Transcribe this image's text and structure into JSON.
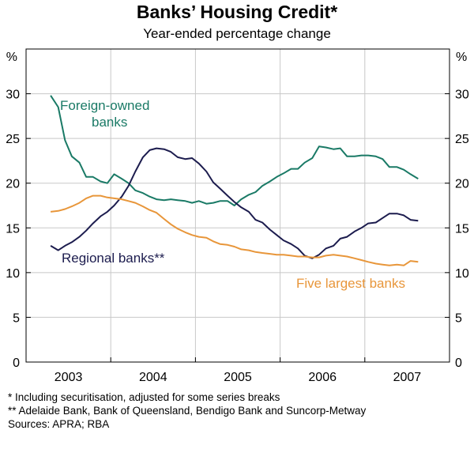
{
  "chart_data": {
    "type": "line",
    "title": "Banks’ Housing Credit*",
    "subtitle": "Year-ended percentage change",
    "y_unit_left": "%",
    "y_unit_right": "%",
    "ylim": [
      0,
      35
    ],
    "yticks": [
      0,
      5,
      10,
      15,
      20,
      25,
      30
    ],
    "xlim": [
      2002.5,
      2007.5
    ],
    "x_tick_labels": [
      "2003",
      "2004",
      "2005",
      "2006",
      "2007"
    ],
    "x_label_positions": [
      2003.0,
      2004.0,
      2005.0,
      2006.0,
      2007.0
    ],
    "x_year_boundaries": [
      2003.5,
      2004.5,
      2005.5,
      2006.5
    ],
    "grid": true,
    "series": [
      {
        "name": "Foreign-owned banks",
        "label_lines": [
          "Foreign-owned",
          "banks"
        ],
        "color": "#1a7a66",
        "x": [
          2002.79,
          2002.88,
          2002.96,
          2003.04,
          2003.13,
          2003.21,
          2003.29,
          2003.38,
          2003.46,
          2003.54,
          2003.63,
          2003.71,
          2003.79,
          2003.88,
          2003.96,
          2004.04,
          2004.13,
          2004.21,
          2004.29,
          2004.38,
          2004.46,
          2004.54,
          2004.63,
          2004.71,
          2004.79,
          2004.88,
          2004.96,
          2005.04,
          2005.13,
          2005.21,
          2005.29,
          2005.38,
          2005.46,
          2005.54,
          2005.63,
          2005.71,
          2005.79,
          2005.88,
          2005.96,
          2006.04,
          2006.13,
          2006.21,
          2006.29,
          2006.38,
          2006.46,
          2006.54,
          2006.63,
          2006.71,
          2006.79,
          2006.88,
          2006.96,
          2007.04,
          2007.13
        ],
        "values": [
          29.8,
          28.5,
          24.8,
          23.0,
          22.3,
          20.7,
          20.7,
          20.2,
          20.0,
          21.0,
          20.5,
          20.0,
          19.2,
          18.9,
          18.5,
          18.2,
          18.1,
          18.2,
          18.1,
          18.0,
          17.8,
          18.0,
          17.7,
          17.8,
          18.0,
          18.0,
          17.5,
          18.2,
          18.7,
          19.0,
          19.7,
          20.2,
          20.7,
          21.1,
          21.6,
          21.6,
          22.3,
          22.8,
          24.1,
          24.0,
          23.8,
          23.9,
          23.0,
          23.0,
          23.1,
          23.1,
          23.0,
          22.7,
          21.8,
          21.8,
          21.5,
          21.0,
          20.5
        ]
      },
      {
        "name": "Regional banks**",
        "color": "#1c1c4e",
        "x": [
          2002.79,
          2002.88,
          2002.96,
          2003.04,
          2003.13,
          2003.21,
          2003.29,
          2003.38,
          2003.46,
          2003.54,
          2003.63,
          2003.71,
          2003.79,
          2003.88,
          2003.96,
          2004.04,
          2004.13,
          2004.21,
          2004.29,
          2004.38,
          2004.46,
          2004.54,
          2004.63,
          2004.71,
          2004.79,
          2004.88,
          2004.96,
          2005.04,
          2005.13,
          2005.21,
          2005.29,
          2005.38,
          2005.46,
          2005.54,
          2005.63,
          2005.71,
          2005.79,
          2005.88,
          2005.96,
          2006.04,
          2006.13,
          2006.21,
          2006.29,
          2006.38,
          2006.46,
          2006.54,
          2006.63,
          2006.71,
          2006.79,
          2006.88,
          2006.96,
          2007.04,
          2007.13
        ],
        "values": [
          13.0,
          12.5,
          13.0,
          13.4,
          14.0,
          14.7,
          15.5,
          16.3,
          16.8,
          17.5,
          18.5,
          19.7,
          21.3,
          22.9,
          23.7,
          23.9,
          23.8,
          23.5,
          22.9,
          22.7,
          22.8,
          22.2,
          21.3,
          20.1,
          19.4,
          18.6,
          17.9,
          17.3,
          16.8,
          15.9,
          15.6,
          14.8,
          14.2,
          13.6,
          13.2,
          12.7,
          11.9,
          11.6,
          12.0,
          12.7,
          13.0,
          13.8,
          14.0,
          14.6,
          15.0,
          15.5,
          15.6,
          16.1,
          16.6,
          16.6,
          16.4,
          15.9,
          15.8
        ]
      },
      {
        "name": "Five largest banks",
        "color": "#e8963a",
        "x": [
          2002.79,
          2002.88,
          2002.96,
          2003.04,
          2003.13,
          2003.21,
          2003.29,
          2003.38,
          2003.46,
          2003.54,
          2003.63,
          2003.71,
          2003.79,
          2003.88,
          2003.96,
          2004.04,
          2004.13,
          2004.21,
          2004.29,
          2004.38,
          2004.46,
          2004.54,
          2004.63,
          2004.71,
          2004.79,
          2004.88,
          2004.96,
          2005.04,
          2005.13,
          2005.21,
          2005.29,
          2005.38,
          2005.46,
          2005.54,
          2005.63,
          2005.71,
          2005.79,
          2005.88,
          2005.96,
          2006.04,
          2006.13,
          2006.21,
          2006.29,
          2006.38,
          2006.46,
          2006.54,
          2006.63,
          2006.71,
          2006.79,
          2006.88,
          2006.96,
          2007.04,
          2007.13
        ],
        "values": [
          16.8,
          16.9,
          17.1,
          17.4,
          17.8,
          18.3,
          18.6,
          18.6,
          18.4,
          18.3,
          18.2,
          18.0,
          17.8,
          17.4,
          17.0,
          16.7,
          16.0,
          15.4,
          14.9,
          14.5,
          14.2,
          14.0,
          13.9,
          13.5,
          13.2,
          13.1,
          12.9,
          12.6,
          12.5,
          12.3,
          12.2,
          12.1,
          12.0,
          12.0,
          11.9,
          11.8,
          11.8,
          11.7,
          11.7,
          11.9,
          12.0,
          11.9,
          11.8,
          11.6,
          11.4,
          11.2,
          11.0,
          10.9,
          10.8,
          10.9,
          10.8,
          11.3,
          11.2
        ]
      }
    ]
  },
  "notes": [
    "*   Including securitisation, adjusted for some series breaks",
    "** Adelaide Bank, Bank of Queensland, Bendigo Bank and Suncorp-Metway",
    "Sources: APRA; RBA"
  ]
}
